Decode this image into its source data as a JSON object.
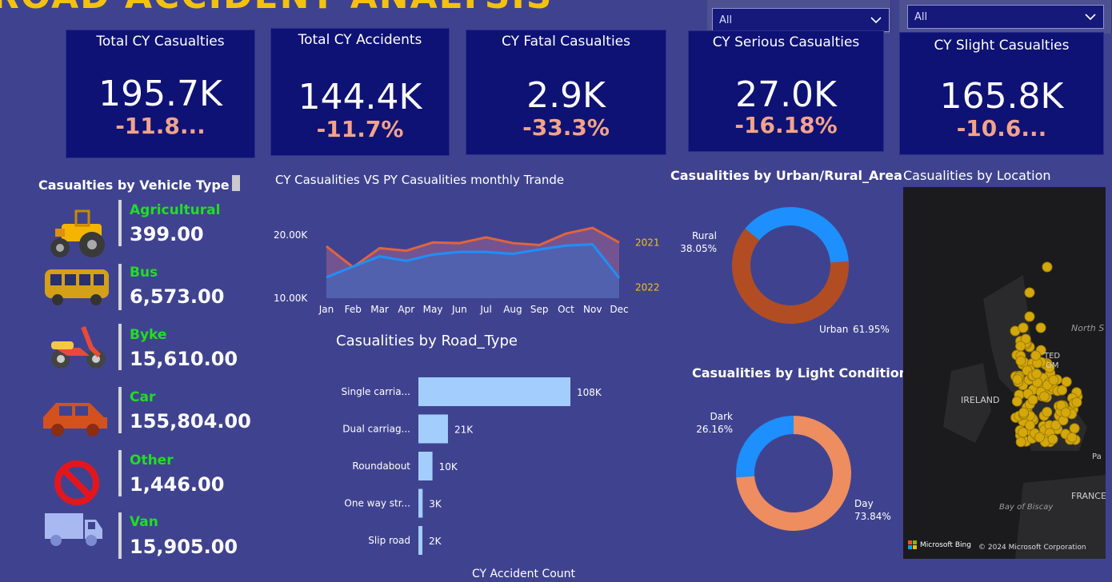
{
  "header": {
    "title": "ROAD ACCIDENT ANALYSIS"
  },
  "filters": [
    {
      "selected": "All"
    },
    {
      "selected": "All"
    }
  ],
  "kpis": [
    {
      "title": "Total CY Casualties",
      "value": "195.7K",
      "delta": "-11.8..."
    },
    {
      "title": "Total CY Accidents",
      "value": "144.4K",
      "delta": "-11.7%"
    },
    {
      "title": "CY Fatal Casualties",
      "value": "2.9K",
      "delta": "-33.3%"
    },
    {
      "title": "CY Serious Casualties",
      "value": "27.0K",
      "delta": "-16.18%"
    },
    {
      "title": "CY Slight Casualties",
      "value": "165.8K",
      "delta": "-10.6..."
    }
  ],
  "vehicles": {
    "title": "Casualties by Vehicle Type",
    "items": [
      {
        "label": "Agricultural",
        "value": "399.00",
        "icon": "tractor-icon"
      },
      {
        "label": "Bus",
        "value": "6,573.00",
        "icon": "bus-icon"
      },
      {
        "label": "Byke",
        "value": "15,610.00",
        "icon": "motorbike-icon"
      },
      {
        "label": "Car",
        "value": "155,804.00",
        "icon": "car-icon"
      },
      {
        "label": "Other",
        "value": "1,446.00",
        "icon": "prohibited-icon"
      },
      {
        "label": "Van",
        "value": "15,905.00",
        "icon": "van-icon"
      }
    ]
  },
  "chart_data": [
    {
      "type": "area",
      "title": "CY Casualities VS PY Casualities monthly Trande",
      "categories": [
        "Jan",
        "Feb",
        "Mar",
        "Apr",
        "May",
        "Jun",
        "Jul",
        "Aug",
        "Sep",
        "Oct",
        "Nov",
        "Dec"
      ],
      "yticks": [
        "10.00K",
        "20.00K"
      ],
      "ylim": [
        10000,
        23000
      ],
      "series": [
        {
          "name": "2021",
          "color": "#e0643e",
          "values": [
            18200,
            14900,
            17900,
            17500,
            18800,
            18700,
            19600,
            18700,
            18400,
            20200,
            21100,
            18800
          ]
        },
        {
          "name": "2022",
          "color": "#1e8fff",
          "values": [
            13300,
            15000,
            16600,
            15900,
            16900,
            17300,
            17300,
            17000,
            17700,
            18300,
            18500,
            13200
          ]
        }
      ]
    },
    {
      "type": "bar",
      "title": "Casualities by Road_Type",
      "xlabel": "CY Accident Count",
      "categories": [
        "Single carria...",
        "Dual carriag...",
        "Roundabout",
        "One way str...",
        "Slip road"
      ],
      "values": [
        108000,
        21000,
        10000,
        3000,
        2000
      ],
      "labels": [
        "108K",
        "21K",
        "10K",
        "3K",
        "2K"
      ],
      "color": "#a3cdfc"
    },
    {
      "type": "pie",
      "title": "Casualities by Urban/Rural_Area",
      "categories": [
        "Rural",
        "Urban"
      ],
      "values": [
        38.05,
        61.95
      ],
      "labels": [
        "38.05%",
        "61.95%"
      ],
      "colors": [
        "#1e8fff",
        "#b24d23"
      ]
    },
    {
      "type": "pie",
      "title": "Casualities by Light Condition",
      "categories": [
        "Dark",
        "Day"
      ],
      "values": [
        26.16,
        73.84
      ],
      "labels": [
        "26.16%",
        "73.84%"
      ],
      "colors": [
        "#1e8fff",
        "#ee8d5f"
      ]
    }
  ],
  "map": {
    "title": "Casualities by Location",
    "labels": {
      "ireland": "IRELAND",
      "france": "FRANCE",
      "biscay": "Bay of Biscay",
      "north": "North S",
      "uk1": "TED",
      "uk2": "OM",
      "paris": "Pa"
    },
    "brand": "Microsoft Bing",
    "copyright": "© 2024 Microsoft Corporation"
  }
}
